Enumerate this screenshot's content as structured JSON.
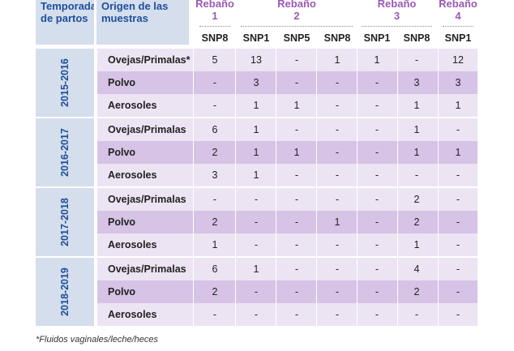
{
  "header": {
    "season": "Temporada\nde partos",
    "origin": "Origen de las\nmuestras",
    "herds": [
      {
        "label": "Rebaño\n1"
      },
      {
        "label": "Rebaño\n2"
      },
      {
        "label": "Rebaño\n3"
      },
      {
        "label": "Rebaño\n4"
      }
    ],
    "snps": [
      "SNP8",
      "SNP1",
      "SNP5",
      "SNP8",
      "SNP1",
      "SNP8",
      "SNP1"
    ]
  },
  "groups": [
    {
      "season": "2015-2016",
      "rows": [
        {
          "origin": "Ovejas/Primalas*",
          "values": [
            "5",
            "13",
            "-",
            "1",
            "1",
            "-",
            "12"
          ]
        },
        {
          "origin": "Polvo",
          "values": [
            "-",
            "3",
            "-",
            "-",
            "-",
            "3",
            "3"
          ]
        },
        {
          "origin": "Aerosoles",
          "values": [
            "-",
            "1",
            "1",
            "-",
            "-",
            "1",
            "1"
          ]
        }
      ]
    },
    {
      "season": "2016-2017",
      "rows": [
        {
          "origin": "Ovejas/Primalas",
          "values": [
            "6",
            "1",
            "-",
            "-",
            "-",
            "1",
            "-"
          ]
        },
        {
          "origin": "Polvo",
          "values": [
            "2",
            "1",
            "1",
            "-",
            "-",
            "1",
            "1"
          ]
        },
        {
          "origin": "Aerosoles",
          "values": [
            "3",
            "1",
            "-",
            "-",
            "-",
            "-",
            "-"
          ]
        }
      ]
    },
    {
      "season": "2017-2018",
      "rows": [
        {
          "origin": "Ovejas/Primalas",
          "values": [
            "-",
            "-",
            "-",
            "-",
            "-",
            "2",
            "-"
          ]
        },
        {
          "origin": "Polvo",
          "values": [
            "2",
            "-",
            "-",
            "1",
            "-",
            "2",
            "-"
          ]
        },
        {
          "origin": "Aerosoles",
          "values": [
            "1",
            "-",
            "-",
            "-",
            "-",
            "1",
            "-"
          ]
        }
      ]
    },
    {
      "season": "2018-2019",
      "rows": [
        {
          "origin": "Ovejas/Primalas",
          "values": [
            "6",
            "1",
            "-",
            "-",
            "-",
            "4",
            "-"
          ]
        },
        {
          "origin": "Polvo",
          "values": [
            "2",
            "-",
            "-",
            "-",
            "-",
            "2",
            "-"
          ]
        },
        {
          "origin": "Aerosoles",
          "values": [
            "-",
            "-",
            "-",
            "-",
            "-",
            "-",
            "-"
          ]
        }
      ]
    }
  ],
  "footnote": "*Fluidos vaginales/leche/heces"
}
